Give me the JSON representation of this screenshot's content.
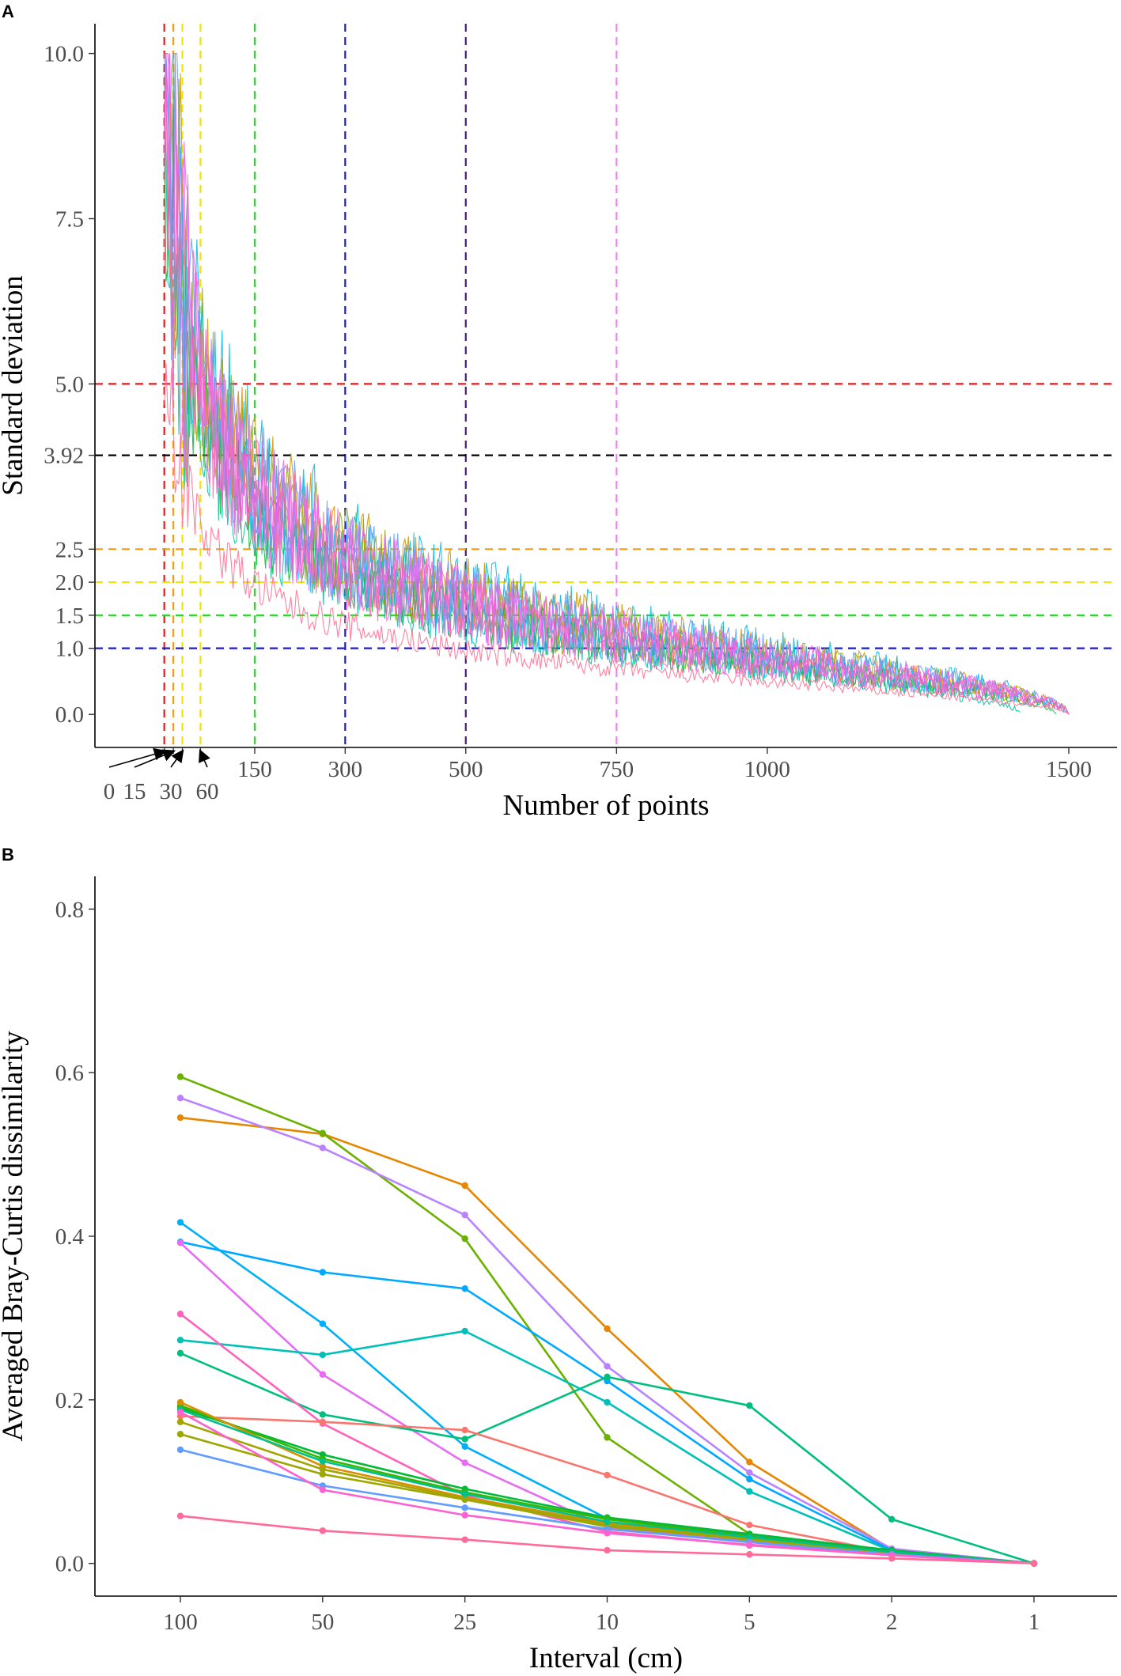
{
  "chart_data": [
    {
      "panel": "A",
      "type": "line",
      "xlabel": "Number of points",
      "ylabel": "Standard deviation",
      "x_ticks": [
        150,
        300,
        500,
        750,
        1000,
        1500
      ],
      "x_tick_labels": [
        "150",
        "300",
        "500",
        "750",
        "1000",
        "1500"
      ],
      "x_arrow_ticks": [
        {
          "label": "0",
          "value": 0
        },
        {
          "label": "15",
          "value": 15
        },
        {
          "label": "30",
          "value": 30
        },
        {
          "label": "60",
          "value": 60
        }
      ],
      "y_ticks": [
        0.0,
        1.0,
        1.5,
        2.0,
        2.5,
        3.92,
        5.0,
        7.5,
        10.0
      ],
      "y_tick_labels": [
        "0.0",
        "1.0",
        "1.5",
        "2.0",
        "2.5",
        "3.92",
        "5.0",
        "7.5",
        "10.0"
      ],
      "xlim": [
        -115,
        1580
      ],
      "ylim": [
        -0.5,
        10.45
      ],
      "grid": false,
      "reference_lines": [
        {
          "orientation": "vertical",
          "value": 0,
          "color": "#e41a1c"
        },
        {
          "orientation": "vertical",
          "value": 15,
          "color": "#f59d0c"
        },
        {
          "orientation": "vertical",
          "value": 30,
          "color": "#f2e20a"
        },
        {
          "orientation": "vertical",
          "value": 60,
          "color": "#f2e20a"
        },
        {
          "orientation": "vertical",
          "value": 150,
          "color": "#22e022"
        },
        {
          "orientation": "vertical",
          "value": 300,
          "color": "#1a1ad6"
        },
        {
          "orientation": "vertical",
          "value": 500,
          "color": "#4b1a7a"
        },
        {
          "orientation": "vertical",
          "value": 750,
          "color": "#ee82ee"
        },
        {
          "orientation": "horizontal",
          "value": 5.0,
          "color": "#e41a1c"
        },
        {
          "orientation": "horizontal",
          "value": 3.92,
          "color": "#000000"
        },
        {
          "orientation": "horizontal",
          "value": 2.5,
          "color": "#f59d0c"
        },
        {
          "orientation": "horizontal",
          "value": 2.0,
          "color": "#f2e20a"
        },
        {
          "orientation": "horizontal",
          "value": 1.5,
          "color": "#22e022"
        },
        {
          "orientation": "horizontal",
          "value": 1.0,
          "color": "#1a1ad6"
        }
      ],
      "series": [
        {
          "color": "#f8766d",
          "x_end": 1500,
          "scale": 45,
          "noise": 0.25
        },
        {
          "color": "#d39200",
          "x_end": 1500,
          "scale": 50,
          "noise": 0.3
        },
        {
          "color": "#93aa00",
          "x_end": 1500,
          "scale": 48,
          "noise": 0.3
        },
        {
          "color": "#00ba38",
          "x_end": 1480,
          "scale": 42,
          "noise": 0.25
        },
        {
          "color": "#00c19f",
          "x_end": 1420,
          "scale": 41,
          "noise": 0.25
        },
        {
          "color": "#00b9e3",
          "x_end": 1500,
          "scale": 50,
          "noise": 0.35
        },
        {
          "color": "#619cff",
          "x_end": 1500,
          "scale": 49,
          "noise": 0.3
        },
        {
          "color": "#db72fb",
          "x_end": 1500,
          "scale": 47,
          "noise": 0.3
        },
        {
          "color": "#ff61c3",
          "x_end": 1500,
          "scale": 46,
          "noise": 0.3
        },
        {
          "color": "#f564e3",
          "x_end": 1500,
          "scale": 47,
          "noise": 0.3
        },
        {
          "color": "#ff6c91",
          "x_end": 1500,
          "scale": 27,
          "noise": 0.15
        }
      ]
    },
    {
      "panel": "B",
      "type": "line",
      "xlabel": "Interval (cm)",
      "ylabel": "Averaged Bray-Curtis dissimilarity",
      "categories": [
        "100",
        "50",
        "25",
        "10",
        "5",
        "2",
        "1"
      ],
      "y_ticks": [
        0.0,
        0.2,
        0.4,
        0.6,
        0.8
      ],
      "y_tick_labels": [
        "0.0",
        "0.2",
        "0.4",
        "0.6",
        "0.8"
      ],
      "ylim": [
        -0.04,
        0.84
      ],
      "grid": false,
      "series": [
        {
          "color": "#e58700",
          "values": [
            0.545,
            0.525,
            0.462,
            0.287,
            0.124,
            0.017,
            0.0
          ]
        },
        {
          "color": "#6bb100",
          "values": [
            0.595,
            0.526,
            0.397,
            0.154,
            0.036,
            0.015,
            0.0
          ]
        },
        {
          "color": "#b983ff",
          "values": [
            0.569,
            0.508,
            0.426,
            0.241,
            0.111,
            0.018,
            0.0
          ]
        },
        {
          "color": "#00b0f6",
          "values": [
            0.417,
            0.293,
            0.143,
            0.055,
            0.035,
            0.015,
            0.0
          ]
        },
        {
          "color": "#00a9ff",
          "values": [
            0.393,
            0.356,
            0.336,
            0.223,
            0.103,
            0.016,
            0.0
          ]
        },
        {
          "color": "#e76bf3",
          "values": [
            0.392,
            0.231,
            0.123,
            0.044,
            0.028,
            0.012,
            0.0
          ]
        },
        {
          "color": "#00c0b8",
          "values": [
            0.273,
            0.255,
            0.284,
            0.197,
            0.088,
            0.015,
            0.0
          ]
        },
        {
          "color": "#00bf7d",
          "values": [
            0.257,
            0.182,
            0.152,
            0.228,
            0.193,
            0.054,
            0.0
          ]
        },
        {
          "color": "#ff62bc",
          "values": [
            0.305,
            0.171,
            0.083,
            0.039,
            0.022,
            0.01,
            0.0
          ]
        },
        {
          "color": "#f8766d",
          "values": [
            0.18,
            0.173,
            0.163,
            0.108,
            0.047,
            0.013,
            0.0
          ]
        },
        {
          "color": "#00ba38",
          "values": [
            0.19,
            0.133,
            0.091,
            0.056,
            0.036,
            0.016,
            0.0
          ]
        },
        {
          "color": "#39b600",
          "values": [
            0.193,
            0.128,
            0.087,
            0.054,
            0.033,
            0.014,
            0.0
          ]
        },
        {
          "color": "#d89000",
          "values": [
            0.197,
            0.119,
            0.081,
            0.049,
            0.031,
            0.014,
            0.0
          ]
        },
        {
          "color": "#a3a500",
          "values": [
            0.173,
            0.115,
            0.079,
            0.047,
            0.03,
            0.013,
            0.0
          ]
        },
        {
          "color": "#9da700",
          "values": [
            0.158,
            0.109,
            0.078,
            0.045,
            0.029,
            0.012,
            0.0
          ]
        },
        {
          "color": "#00c08b",
          "values": [
            0.188,
            0.125,
            0.085,
            0.051,
            0.032,
            0.014,
            0.0
          ]
        },
        {
          "color": "#619cff",
          "values": [
            0.139,
            0.095,
            0.068,
            0.042,
            0.026,
            0.011,
            0.0
          ]
        },
        {
          "color": "#fd61d1",
          "values": [
            0.185,
            0.09,
            0.059,
            0.037,
            0.023,
            0.01,
            0.0
          ]
        },
        {
          "color": "#ff6a98",
          "values": [
            0.058,
            0.04,
            0.029,
            0.016,
            0.011,
            0.006,
            0.0
          ]
        }
      ]
    }
  ]
}
